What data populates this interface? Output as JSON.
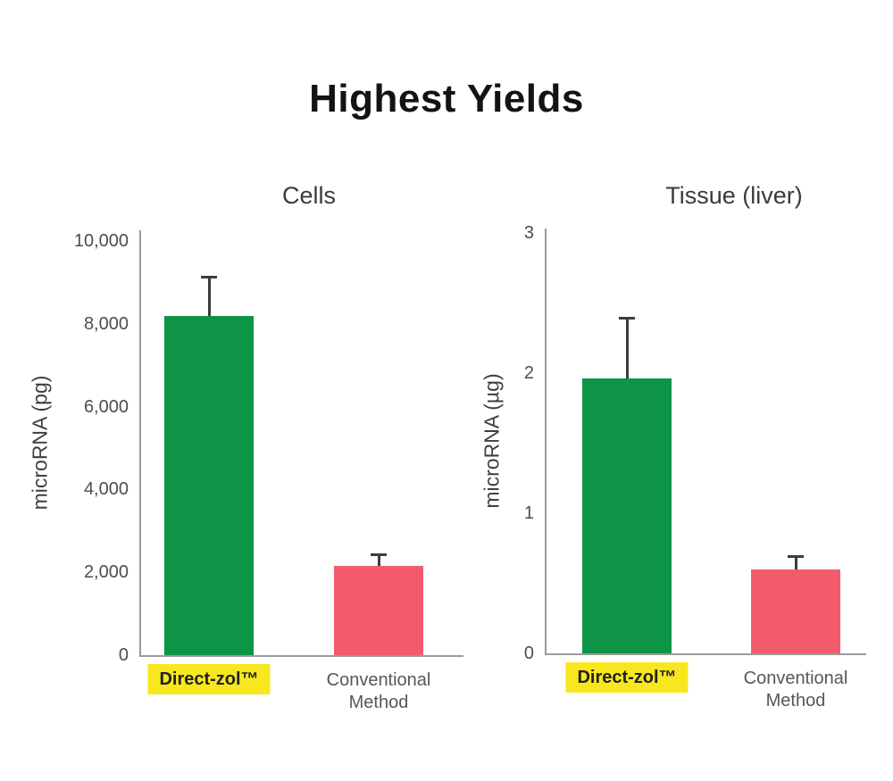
{
  "title": "Highest Yields",
  "colors": {
    "direct_zol_green": "#0E9447",
    "conventional_pink": "#F25B6B",
    "label_highlight_yellow": "#F8E71E",
    "axis_gray": "#9B9B9B",
    "error_bar": "#3D3D3D"
  },
  "chart_data": [
    {
      "type": "bar",
      "title": "Cells",
      "xlabel": "",
      "ylabel": "microRNA (pg)",
      "ylim": [
        0,
        10000
      ],
      "ytick_values": [
        0,
        2000,
        4000,
        6000,
        8000,
        10000
      ],
      "ytick_labels": [
        "0",
        "2,000",
        "4,000",
        "6,000",
        "8,000",
        "10,000"
      ],
      "categories": [
        "Direct-zol™",
        "Conventional Method"
      ],
      "values": [
        8200,
        2150
      ],
      "errors_plus": [
        950,
        300
      ],
      "bar_colors": [
        "#0E9447",
        "#F25B6B"
      ],
      "category_highlight": [
        true,
        false
      ],
      "grid": false,
      "legend": false
    },
    {
      "type": "bar",
      "title": "Tissue (liver)",
      "xlabel": "",
      "ylabel": "microRNA (µg)",
      "ylim": [
        0,
        3
      ],
      "ytick_values": [
        0,
        1,
        2,
        3
      ],
      "ytick_labels": [
        "0",
        "1",
        "2",
        "3"
      ],
      "categories": [
        "Direct-zol™",
        "Conventional Method"
      ],
      "values": [
        1.96,
        0.6
      ],
      "errors_plus": [
        0.44,
        0.1
      ],
      "bar_colors": [
        "#0E9447",
        "#F25B6B"
      ],
      "category_highlight": [
        true,
        false
      ],
      "grid": false,
      "legend": false
    }
  ]
}
